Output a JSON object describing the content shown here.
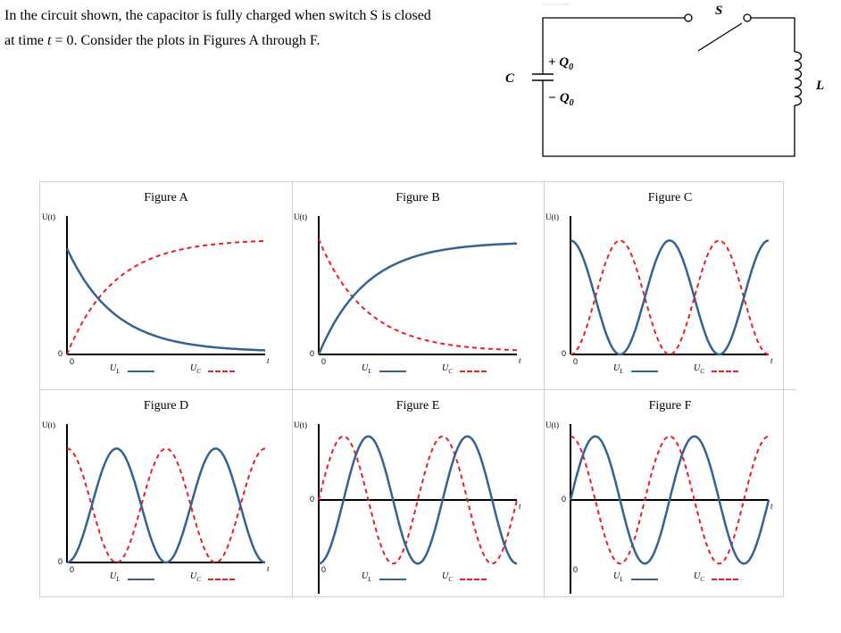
{
  "question": {
    "line1": "In the circuit shown, the capacitor is fully charged when switch S is closed",
    "line2_pre": "at time ",
    "line2_var": "t",
    "line2_post": " = 0. Consider the plots in Figures A through F."
  },
  "circuit": {
    "switch_label": "S",
    "inductor_label": "L",
    "capacitor_label": "C",
    "plus_charge": "+ Q",
    "minus_charge": "− Q",
    "charge_subscript": "0"
  },
  "colors": {
    "solid_series": "#356291",
    "dashed_series": "#ec1b24"
  },
  "axis": {
    "y_label": "U(t)",
    "x_label": "t",
    "zero": "0",
    "legend_solid": "U",
    "legend_solid_sub": "L",
    "legend_dashed": "U",
    "legend_dashed_sub": "C"
  },
  "figures": [
    {
      "title": "Figure A"
    },
    {
      "title": "Figure B"
    },
    {
      "title": "Figure C"
    },
    {
      "title": "Figure D"
    },
    {
      "title": "Figure E"
    },
    {
      "title": "Figure F"
    }
  ],
  "chart_data": [
    {
      "type": "line",
      "title": "Figure A",
      "ylabel": "U(t)",
      "xlabel": "t",
      "series": [
        {
          "name": "U_L",
          "style": "solid",
          "shape": "exponential decay",
          "x": [
            0,
            0.2,
            0.4,
            0.6,
            0.8,
            1.0
          ],
          "y": [
            0.8,
            0.45,
            0.25,
            0.12,
            0.05,
            0.02
          ]
        },
        {
          "name": "U_C",
          "style": "dashed",
          "shape": "exponential rise",
          "x": [
            0,
            0.2,
            0.4,
            0.6,
            0.8,
            1.0
          ],
          "y": [
            0.0,
            0.45,
            0.68,
            0.8,
            0.85,
            0.88
          ]
        }
      ]
    },
    {
      "type": "line",
      "title": "Figure B",
      "ylabel": "U(t)",
      "xlabel": "t",
      "series": [
        {
          "name": "U_L",
          "style": "solid",
          "shape": "exponential rise",
          "x": [
            0,
            0.2,
            0.4,
            0.6,
            0.8,
            1.0
          ],
          "y": [
            0.0,
            0.45,
            0.68,
            0.8,
            0.85,
            0.87
          ]
        },
        {
          "name": "U_C",
          "style": "dashed",
          "shape": "exponential decay",
          "x": [
            0,
            0.2,
            0.4,
            0.6,
            0.8,
            1.0
          ],
          "y": [
            0.87,
            0.45,
            0.25,
            0.12,
            0.05,
            0.02
          ]
        }
      ]
    },
    {
      "type": "line",
      "title": "Figure C",
      "ylabel": "U(t)",
      "xlabel": "t",
      "series": [
        {
          "name": "U_L",
          "style": "solid",
          "shape": "cos^2, starts at max",
          "cycles": 2
        },
        {
          "name": "U_C",
          "style": "dashed",
          "shape": "sin^2, starts at zero",
          "cycles": 2
        }
      ]
    },
    {
      "type": "line",
      "title": "Figure D",
      "ylabel": "U(t)",
      "xlabel": "t",
      "series": [
        {
          "name": "U_L",
          "style": "solid",
          "shape": "sin^2, starts at zero",
          "cycles": 2
        },
        {
          "name": "U_C",
          "style": "dashed",
          "shape": "cos^2, starts at max",
          "cycles": 2
        }
      ]
    },
    {
      "type": "line",
      "title": "Figure E",
      "ylabel": "U(t)",
      "xlabel": "t",
      "series": [
        {
          "name": "U_L",
          "style": "solid",
          "shape": "-cos, starts at min",
          "cycles": 2
        },
        {
          "name": "U_C",
          "style": "dashed",
          "shape": "sin, starts at zero",
          "cycles": 2
        }
      ]
    },
    {
      "type": "line",
      "title": "Figure F",
      "ylabel": "U(t)",
      "xlabel": "t",
      "series": [
        {
          "name": "U_L",
          "style": "solid",
          "shape": "sin, starts at zero",
          "cycles": 2
        },
        {
          "name": "U_C",
          "style": "dashed",
          "shape": "cos, starts at max",
          "cycles": 2
        }
      ]
    }
  ]
}
